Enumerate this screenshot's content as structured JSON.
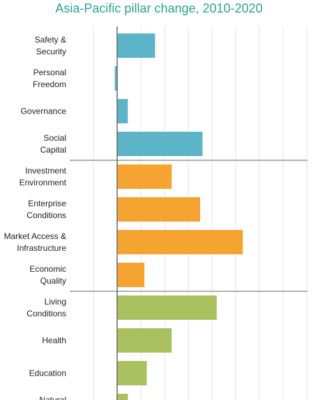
{
  "chart_data": {
    "type": "bar",
    "orientation": "horizontal",
    "title": "Asia-Pacific pillar change, 2010-2020",
    "categories": [
      "Safety &\nSecurity",
      "Personal\nFreedom",
      "Governance",
      "Social\nCapital",
      "Investment\nEnvironment",
      "Enterprise\nConditions",
      "Market Access &\nInfrastructure",
      "Economic\nQuality",
      "Living\nConditions",
      "Health",
      "Education",
      "Natural\nEnvironment"
    ],
    "values": [
      1.6,
      -0.1,
      0.45,
      3.6,
      2.3,
      3.5,
      5.3,
      1.15,
      4.2,
      2.3,
      1.25,
      0.45
    ],
    "colors": [
      "#5bb4c8",
      "#5bb4c8",
      "#5bb4c8",
      "#5bb4c8",
      "#f5a432",
      "#f5a432",
      "#f5a432",
      "#f5a432",
      "#a9c25f",
      "#a9c25f",
      "#a9c25f",
      "#a9c25f"
    ],
    "xlim": [
      -2,
      8.47
    ],
    "gridlines": [
      -1,
      0,
      1,
      2,
      3,
      4,
      5,
      6,
      7,
      8
    ],
    "grid": true
  }
}
